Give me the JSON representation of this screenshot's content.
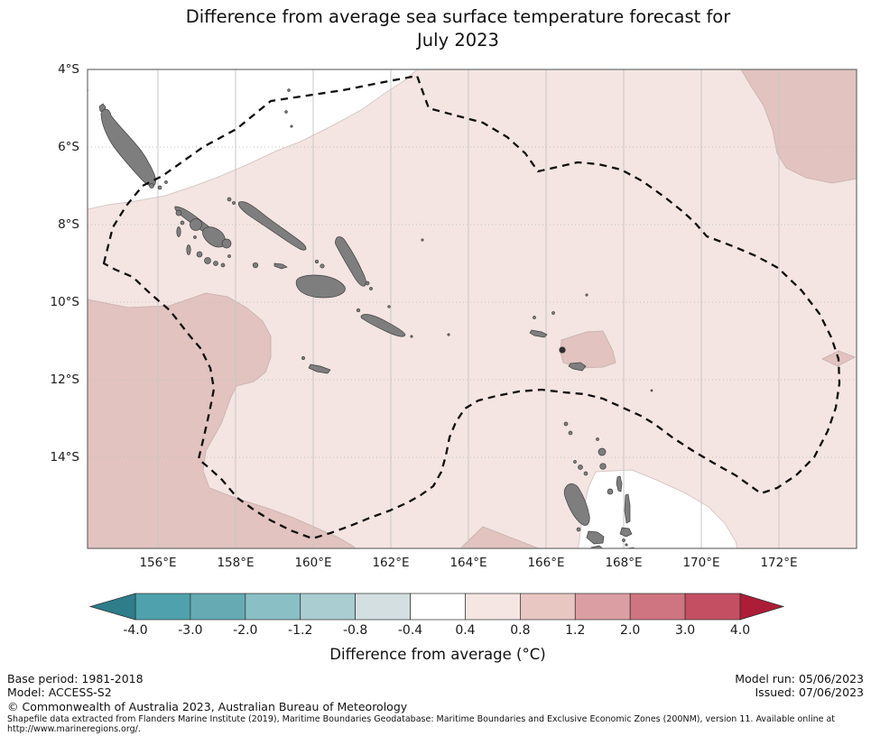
{
  "title": {
    "line1": "Difference from average sea surface temperature forecast for",
    "line2": "July 2023"
  },
  "map": {
    "y_axis_ticks": [
      "4°S",
      "6°S",
      "8°S",
      "10°S",
      "12°S",
      "14°S"
    ],
    "x_axis_ticks": [
      "156°E",
      "158°E",
      "160°E",
      "162°E",
      "164°E",
      "166°E",
      "168°E",
      "170°E",
      "172°E"
    ],
    "region_outline": "Exclusive Economic Zone boundary (dashed)",
    "shaded_levels": {
      "most_of_region": "0.4 to 0.8 °C above average",
      "darker_patches": "0.8 to 1.2 °C above average",
      "white_areas": "within ±0.4 °C of average"
    },
    "colors": {
      "anomaly_0_4_to_0_8": "#f4e5e2",
      "anomaly_0_8_to_1_2": "#e2c3bf",
      "anomaly_neutral": "#ffffff",
      "land": "#7e7e7e",
      "eez_boundary": "#0d0d0d",
      "gridline": "#c7c7c7"
    }
  },
  "colorbar": {
    "caption": "Difference from average (°C)",
    "tick_labels": [
      "-4.0",
      "-3.0",
      "-2.0",
      "-1.2",
      "-0.8",
      "-0.4",
      "0.4",
      "0.8",
      "1.2",
      "2.0",
      "3.0",
      "4.0"
    ],
    "segment_colors": [
      "#4fa2ad",
      "#66abb3",
      "#8abfc5",
      "#a9cdd1",
      "#d3dfe1",
      "#ffffff",
      "#f6e6e3",
      "#e8c7c2",
      "#db9fa3",
      "#cf7581",
      "#c44f63"
    ],
    "left_arrow_color": "#2e7d8a",
    "right_arrow_color": "#ae1d37"
  },
  "footer": {
    "base_period": "Base period: 1981-2018",
    "model": "Model: ACCESS-S2",
    "model_run": "Model run: 05/06/2023",
    "issued": "Issued: 07/06/2023",
    "copyright": "© Commonwealth of Australia 2023, Australian Bureau of Meteorology",
    "shapefile_note_line1": "Shapefile data extracted from Flanders Marine Institute (2019), Maritime Boundaries Geodatabase: Maritime Boundaries and Exclusive Economic Zones (200NM), version 11. Available online at",
    "shapefile_note_line2": "http://www.marineregions.org/."
  }
}
